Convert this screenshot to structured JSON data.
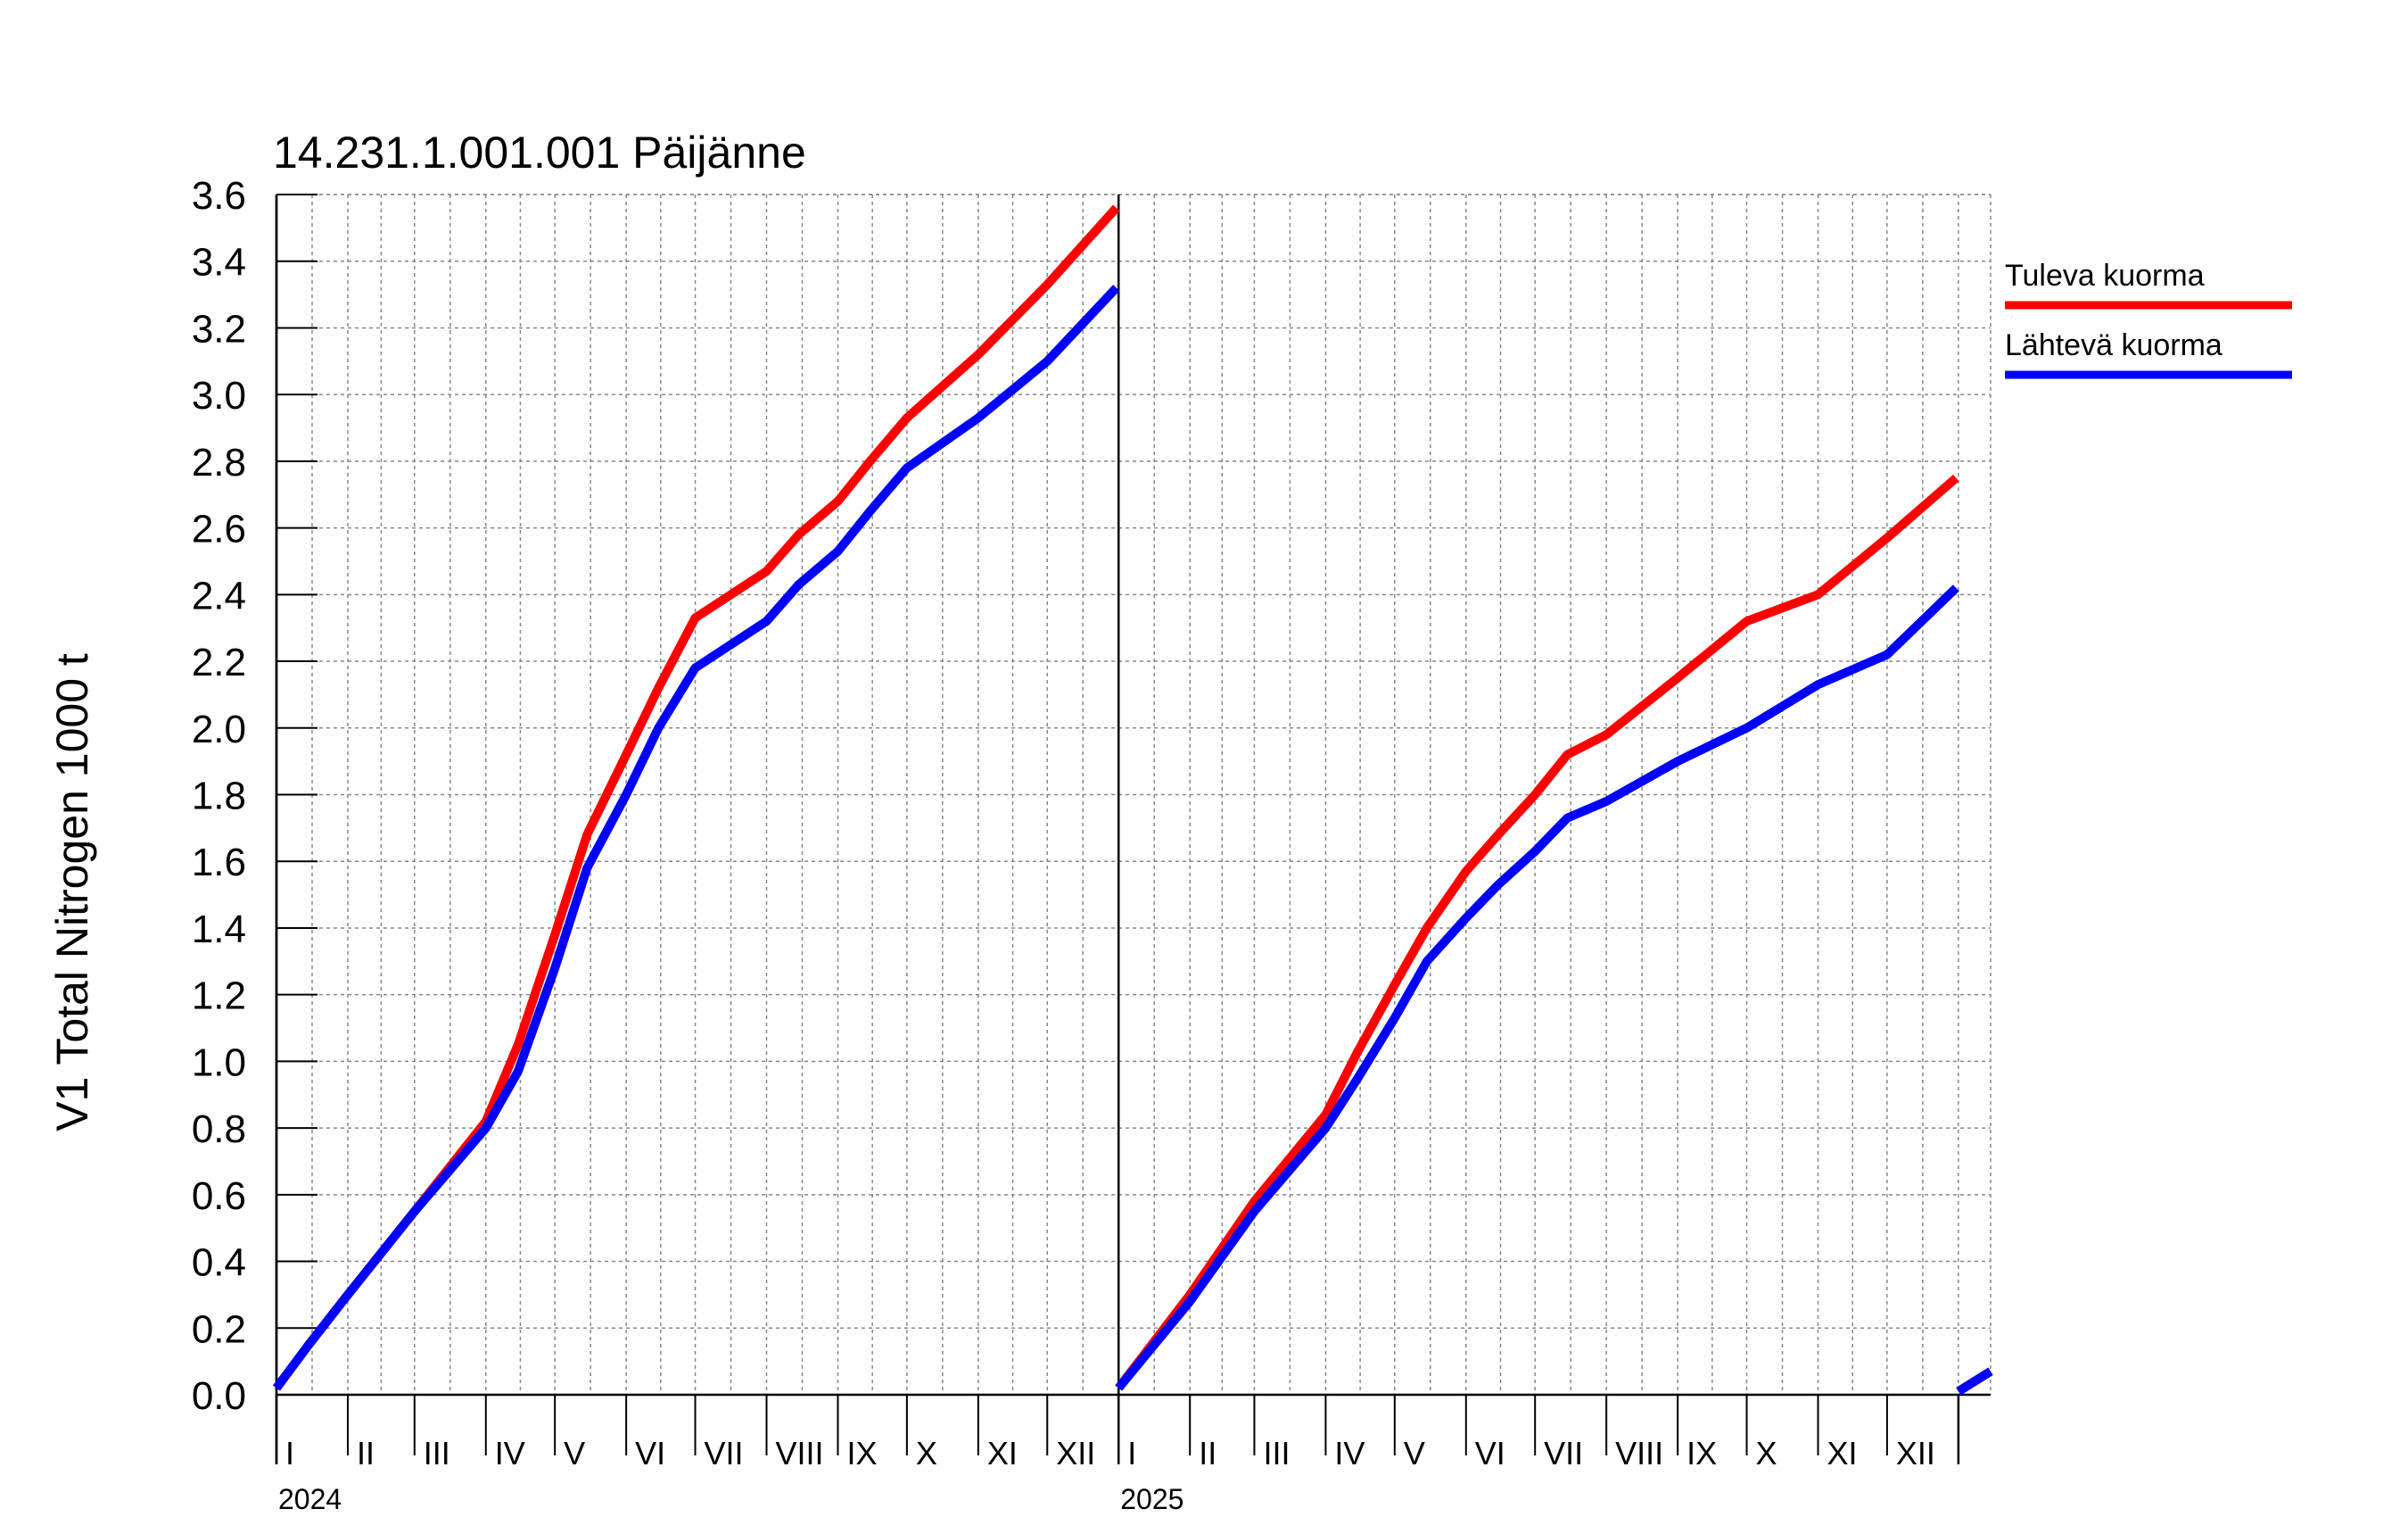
{
  "chart_data": {
    "type": "line",
    "title": "14.231.1.001.001 Päijänne",
    "ylabel": "V1 Total Nitrogen 1000 t",
    "xlabel": "",
    "ylim": [
      0,
      3.6
    ],
    "yticks": [
      "0.0",
      "0.2",
      "0.4",
      "0.6",
      "0.8",
      "1.0",
      "1.2",
      "1.4",
      "1.6",
      "1.8",
      "2.0",
      "2.2",
      "2.4",
      "2.6",
      "2.8",
      "3.0",
      "3.2",
      "3.4",
      "3.6"
    ],
    "xlim": [
      "2024-01-01",
      "2026-01-15"
    ],
    "grid": true,
    "legend_position": "right",
    "months": [
      "I",
      "II",
      "III",
      "IV",
      "V",
      "VI",
      "VII",
      "VIII",
      "IX",
      "X",
      "XI",
      "XII"
    ],
    "years": [
      "2024",
      "2025"
    ],
    "series": [
      {
        "name": "Tuleva kuorma",
        "color": "#ff0000",
        "segments": [
          {
            "x": [
              "2024-01-01",
              "2024-01-15",
              "2024-02-01",
              "2024-03-01",
              "2024-04-01",
              "2024-04-15",
              "2024-05-01",
              "2024-05-15",
              "2024-06-01",
              "2024-06-15",
              "2024-07-01",
              "2024-08-01",
              "2024-08-15",
              "2024-09-01",
              "2024-09-15",
              "2024-10-01",
              "2024-11-01",
              "2024-12-01",
              "2024-12-31"
            ],
            "y": [
              0.02,
              0.15,
              0.3,
              0.55,
              0.82,
              1.05,
              1.38,
              1.68,
              1.92,
              2.12,
              2.33,
              2.47,
              2.58,
              2.68,
              2.8,
              2.93,
              3.12,
              3.33,
              3.56
            ]
          },
          {
            "x": [
              "2025-01-01",
              "2025-02-01",
              "2025-03-01",
              "2025-04-01",
              "2025-04-15",
              "2025-05-01",
              "2025-05-15",
              "2025-06-01",
              "2025-06-15",
              "2025-07-01",
              "2025-07-15",
              "2025-08-01",
              "2025-09-01",
              "2025-10-01",
              "2025-11-01",
              "2025-12-01",
              "2025-12-31"
            ],
            "y": [
              0.02,
              0.3,
              0.58,
              0.84,
              1.03,
              1.23,
              1.4,
              1.57,
              1.68,
              1.8,
              1.92,
              1.98,
              2.15,
              2.32,
              2.4,
              2.57,
              2.75
            ]
          },
          {
            "x": [
              "2026-01-01",
              "2026-01-15"
            ],
            "y": [
              0.01,
              0.07
            ]
          }
        ]
      },
      {
        "name": "Lähtevä kuorma",
        "color": "#0000ff",
        "segments": [
          {
            "x": [
              "2024-01-01",
              "2024-01-15",
              "2024-02-01",
              "2024-03-01",
              "2024-04-01",
              "2024-04-15",
              "2024-05-01",
              "2024-05-15",
              "2024-06-01",
              "2024-06-15",
              "2024-07-01",
              "2024-08-01",
              "2024-08-15",
              "2024-09-01",
              "2024-09-15",
              "2024-10-01",
              "2024-11-01",
              "2024-12-01",
              "2024-12-31"
            ],
            "y": [
              0.02,
              0.15,
              0.3,
              0.55,
              0.8,
              0.97,
              1.28,
              1.58,
              1.8,
              2.0,
              2.18,
              2.32,
              2.43,
              2.53,
              2.65,
              2.78,
              2.93,
              3.1,
              3.32
            ]
          },
          {
            "x": [
              "2025-01-01",
              "2025-02-01",
              "2025-03-01",
              "2025-04-01",
              "2025-04-15",
              "2025-05-01",
              "2025-05-15",
              "2025-06-01",
              "2025-06-15",
              "2025-07-01",
              "2025-07-15",
              "2025-08-01",
              "2025-09-01",
              "2025-10-01",
              "2025-11-01",
              "2025-12-01",
              "2025-12-31"
            ],
            "y": [
              0.02,
              0.28,
              0.55,
              0.8,
              0.95,
              1.13,
              1.3,
              1.43,
              1.53,
              1.63,
              1.73,
              1.78,
              1.9,
              2.0,
              2.13,
              2.22,
              2.42
            ]
          },
          {
            "x": [
              "2026-01-01",
              "2026-01-15"
            ],
            "y": [
              0.01,
              0.07
            ]
          }
        ]
      }
    ]
  }
}
